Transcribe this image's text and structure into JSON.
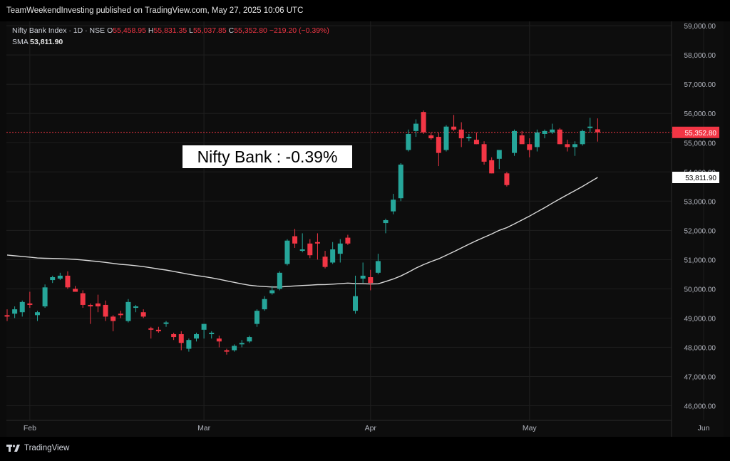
{
  "header": {
    "publish_line": "TeamWeekendInvesting published on TradingView.com, May 27, 2025 10:06 UTC"
  },
  "legend": {
    "symbol": "Nifty Bank Index · 1D · NSE",
    "open_label": "O",
    "open": "55,458.95",
    "high_label": "H",
    "high": "55,831.35",
    "low_label": "L",
    "low": "55,037.85",
    "close_label": "C",
    "close": "55,352.80",
    "change": "−219.20 (−0.39%)",
    "sma_label": "SMA",
    "sma_value": "53,811.90"
  },
  "annotation": "Nifty Bank : -0.39%",
  "footer": {
    "brand": "TradingView"
  },
  "colors": {
    "up": "#26a69a",
    "down": "#f23645",
    "sma": "#d9d9d9",
    "price_badge": "#f23645",
    "sma_badge_bg": "#ffffff",
    "grid": "#1f1f1f",
    "axis_text": "#b2b5be"
  },
  "chart_data": {
    "type": "candlestick",
    "y_ticks": [
      46000,
      47000,
      48000,
      49000,
      50000,
      51000,
      52000,
      53000,
      54000,
      55000,
      56000,
      57000,
      58000,
      59000
    ],
    "y_tick_labels": [
      "46,000.00",
      "47,000.00",
      "48,000.00",
      "49,000.00",
      "50,000.00",
      "51,000.00",
      "52,000.00",
      "53,000.00",
      "54,000.00",
      "55,000.00",
      "56,000.00",
      "57,000.00",
      "58,000.00",
      "59,000.00"
    ],
    "ylim": [
      45500,
      59150
    ],
    "x_tick_labels": [
      {
        "label": "Feb",
        "index": 3
      },
      {
        "label": "Mar",
        "index": 26
      },
      {
        "label": "Apr",
        "index": 48
      },
      {
        "label": "May",
        "index": 69
      },
      {
        "label": "Jun",
        "index": 92
      }
    ],
    "last_price": 55352.8,
    "last_price_label": "55,352.80",
    "sma_last": 53811.9,
    "sma_last_label": "53,811.90",
    "candles": [
      {
        "o": 49100,
        "h": 49300,
        "l": 48900,
        "c": 49050
      },
      {
        "o": 49150,
        "h": 49400,
        "l": 49000,
        "c": 49300
      },
      {
        "o": 49200,
        "h": 49600,
        "l": 49050,
        "c": 49550
      },
      {
        "o": 49500,
        "h": 49900,
        "l": 49350,
        "c": 49450
      },
      {
        "o": 49100,
        "h": 49250,
        "l": 48900,
        "c": 49200
      },
      {
        "o": 49400,
        "h": 50150,
        "l": 49350,
        "c": 50050
      },
      {
        "o": 50300,
        "h": 50450,
        "l": 50200,
        "c": 50400
      },
      {
        "o": 50350,
        "h": 50550,
        "l": 50300,
        "c": 50450
      },
      {
        "o": 50450,
        "h": 50600,
        "l": 50000,
        "c": 50050
      },
      {
        "o": 50000,
        "h": 50100,
        "l": 49950,
        "c": 49900
      },
      {
        "o": 49850,
        "h": 49950,
        "l": 49350,
        "c": 49450
      },
      {
        "o": 49450,
        "h": 49500,
        "l": 48800,
        "c": 49400
      },
      {
        "o": 49500,
        "h": 49800,
        "l": 49200,
        "c": 49400
      },
      {
        "o": 49450,
        "h": 49600,
        "l": 48900,
        "c": 49050
      },
      {
        "o": 49050,
        "h": 49100,
        "l": 48550,
        "c": 48900
      },
      {
        "o": 49150,
        "h": 49250,
        "l": 49000,
        "c": 49100
      },
      {
        "o": 48900,
        "h": 49650,
        "l": 48850,
        "c": 49550
      },
      {
        "o": 49350,
        "h": 49450,
        "l": 49200,
        "c": 49400
      },
      {
        "o": 49200,
        "h": 49300,
        "l": 49000,
        "c": 49050
      },
      {
        "o": 48650,
        "h": 48700,
        "l": 48300,
        "c": 48600
      },
      {
        "o": 48600,
        "h": 48700,
        "l": 48500,
        "c": 48550
      },
      {
        "o": 48800,
        "h": 48900,
        "l": 48700,
        "c": 48850
      },
      {
        "o": 48450,
        "h": 48500,
        "l": 48250,
        "c": 48350
      },
      {
        "o": 48450,
        "h": 48550,
        "l": 47900,
        "c": 48150
      },
      {
        "o": 47950,
        "h": 48300,
        "l": 47850,
        "c": 48250
      },
      {
        "o": 48300,
        "h": 48500,
        "l": 48200,
        "c": 48450
      },
      {
        "o": 48600,
        "h": 48800,
        "l": 48300,
        "c": 48800
      },
      {
        "o": 48450,
        "h": 48550,
        "l": 48300,
        "c": 48500
      },
      {
        "o": 48300,
        "h": 48400,
        "l": 48000,
        "c": 48200
      },
      {
        "o": 47900,
        "h": 47950,
        "l": 47750,
        "c": 47850
      },
      {
        "o": 47900,
        "h": 48100,
        "l": 47850,
        "c": 48050
      },
      {
        "o": 48100,
        "h": 48250,
        "l": 48000,
        "c": 48150
      },
      {
        "o": 48200,
        "h": 48400,
        "l": 48150,
        "c": 48350
      },
      {
        "o": 48800,
        "h": 49300,
        "l": 48700,
        "c": 49250
      },
      {
        "o": 49300,
        "h": 49750,
        "l": 49250,
        "c": 49650
      },
      {
        "o": 49850,
        "h": 50100,
        "l": 49800,
        "c": 49950
      },
      {
        "o": 50000,
        "h": 50600,
        "l": 49950,
        "c": 50550
      },
      {
        "o": 50850,
        "h": 51700,
        "l": 50800,
        "c": 51650
      },
      {
        "o": 51800,
        "h": 52050,
        "l": 51400,
        "c": 51550
      },
      {
        "o": 51300,
        "h": 51900,
        "l": 51250,
        "c": 51350
      },
      {
        "o": 51550,
        "h": 51700,
        "l": 51050,
        "c": 51150
      },
      {
        "o": 51600,
        "h": 51900,
        "l": 51000,
        "c": 51550
      },
      {
        "o": 51100,
        "h": 51300,
        "l": 50700,
        "c": 50750
      },
      {
        "o": 50900,
        "h": 51600,
        "l": 50850,
        "c": 51350
      },
      {
        "o": 51200,
        "h": 51700,
        "l": 50900,
        "c": 51550
      },
      {
        "o": 51750,
        "h": 51850,
        "l": 51500,
        "c": 51550
      },
      {
        "o": 49250,
        "h": 50450,
        "l": 49150,
        "c": 49750
      },
      {
        "o": 50350,
        "h": 50900,
        "l": 50200,
        "c": 50450
      },
      {
        "o": 50400,
        "h": 50650,
        "l": 49950,
        "c": 50200
      },
      {
        "o": 50550,
        "h": 51200,
        "l": 50500,
        "c": 50950
      },
      {
        "o": 52250,
        "h": 52400,
        "l": 51900,
        "c": 52350
      },
      {
        "o": 52650,
        "h": 53250,
        "l": 52550,
        "c": 53050
      },
      {
        "o": 53100,
        "h": 54300,
        "l": 53000,
        "c": 54250
      },
      {
        "o": 54750,
        "h": 55450,
        "l": 54700,
        "c": 55300
      },
      {
        "o": 55400,
        "h": 55800,
        "l": 55200,
        "c": 55650
      },
      {
        "o": 56050,
        "h": 56100,
        "l": 55300,
        "c": 55350
      },
      {
        "o": 55250,
        "h": 55350,
        "l": 55100,
        "c": 55150
      },
      {
        "o": 55200,
        "h": 55350,
        "l": 54200,
        "c": 54650
      },
      {
        "o": 54750,
        "h": 55600,
        "l": 54700,
        "c": 55550
      },
      {
        "o": 55550,
        "h": 55950,
        "l": 55400,
        "c": 55450
      },
      {
        "o": 55450,
        "h": 55700,
        "l": 54850,
        "c": 55150
      },
      {
        "o": 55150,
        "h": 55300,
        "l": 55050,
        "c": 55200
      },
      {
        "o": 55100,
        "h": 55350,
        "l": 54950,
        "c": 54950
      },
      {
        "o": 54950,
        "h": 55050,
        "l": 54250,
        "c": 54350
      },
      {
        "o": 54400,
        "h": 54500,
        "l": 53950,
        "c": 53950
      },
      {
        "o": 54450,
        "h": 54700,
        "l": 54100,
        "c": 54750
      },
      {
        "o": 53950,
        "h": 54000,
        "l": 53500,
        "c": 53550
      },
      {
        "o": 54650,
        "h": 55450,
        "l": 54550,
        "c": 55400
      },
      {
        "o": 55250,
        "h": 55400,
        "l": 55000,
        "c": 54950
      },
      {
        "o": 54950,
        "h": 55150,
        "l": 54500,
        "c": 54750
      },
      {
        "o": 54850,
        "h": 55450,
        "l": 54700,
        "c": 55350
      },
      {
        "o": 55300,
        "h": 55450,
        "l": 55150,
        "c": 55400
      },
      {
        "o": 55350,
        "h": 55650,
        "l": 55300,
        "c": 55450
      },
      {
        "o": 55450,
        "h": 55500,
        "l": 54950,
        "c": 54950
      },
      {
        "o": 54950,
        "h": 55100,
        "l": 54700,
        "c": 54850
      },
      {
        "o": 54850,
        "h": 55050,
        "l": 54550,
        "c": 54950
      },
      {
        "o": 54950,
        "h": 55450,
        "l": 54900,
        "c": 55400
      },
      {
        "o": 55500,
        "h": 55850,
        "l": 55350,
        "c": 55550
      },
      {
        "o": 55458.95,
        "h": 55831.35,
        "l": 55037.85,
        "c": 55352.8
      }
    ]
  }
}
